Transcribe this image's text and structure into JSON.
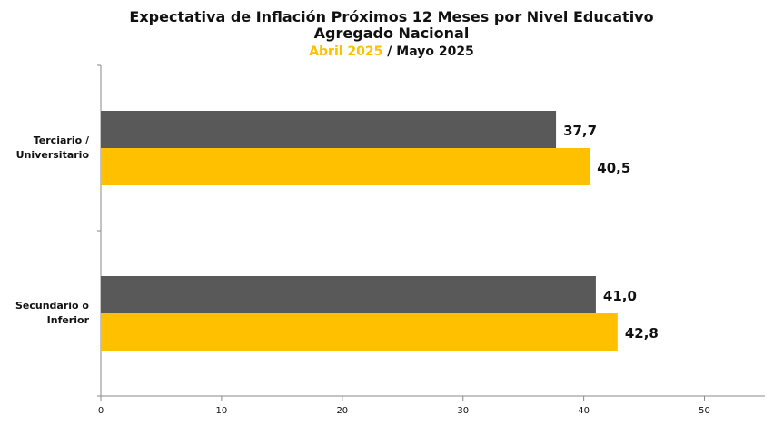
{
  "chart_data": {
    "type": "bar",
    "orientation": "horizontal",
    "title": "Expectativa de Inflación Próximos 12 Meses por Nivel Educativo",
    "subtitle": "Agregado Nacional",
    "period_a_label": "Abril 2025",
    "period_separator": " / ",
    "period_b_label": "Mayo 2025",
    "categories": [
      "Terciario / Universitario",
      "Secundario o Inferior"
    ],
    "series": [
      {
        "name": "Abril 2025",
        "color": "#ffc000",
        "values": [
          40.5,
          42.8
        ],
        "labels": [
          "40,5",
          "42,8"
        ]
      },
      {
        "name": "Mayo 2025",
        "color": "#595959",
        "values": [
          37.7,
          41.0
        ],
        "labels": [
          "37,7",
          "41,0"
        ]
      }
    ],
    "xlim": [
      0,
      55
    ],
    "xticks": [
      0,
      10,
      20,
      30,
      40,
      50
    ],
    "xtick_labels": [
      "0",
      "10",
      "20",
      "30",
      "40",
      "50"
    ],
    "grid": false,
    "legend": "none",
    "category_label_lines": [
      [
        "Terciario /",
        "Universitario"
      ],
      [
        "Secundario o",
        "Inferior"
      ]
    ]
  }
}
